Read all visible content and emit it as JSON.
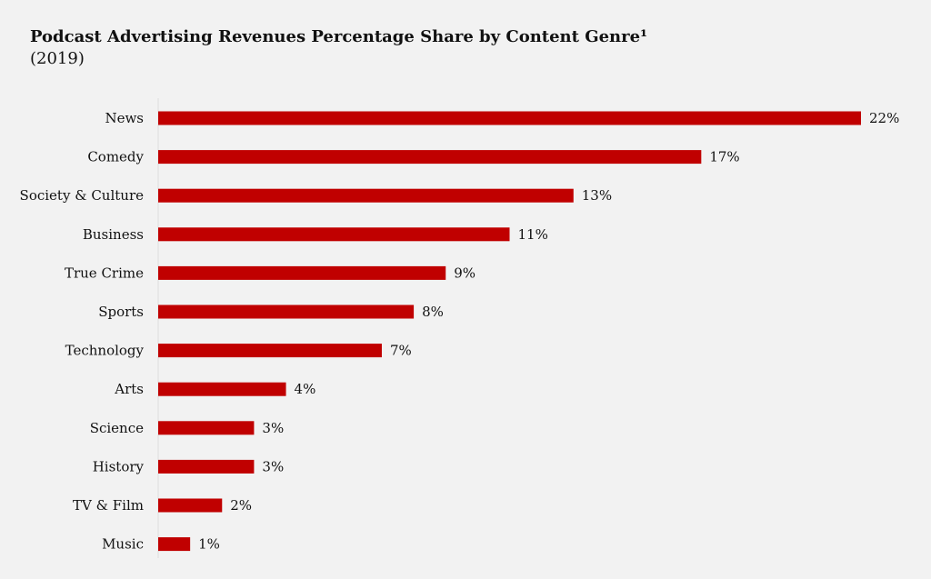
{
  "chart_data": {
    "type": "bar",
    "orientation": "horizontal",
    "title": "Podcast Advertising Revenues Percentage Share by Content Genre¹",
    "subtitle": "(2019)",
    "categories": [
      "News",
      "Comedy",
      "Society & Culture",
      "Business",
      "True Crime",
      "Sports",
      "Technology",
      "Arts",
      "Science",
      "History",
      "TV & Film",
      "Music"
    ],
    "values": [
      22,
      17,
      13,
      11,
      9,
      8,
      7,
      4,
      3,
      3,
      2,
      1
    ],
    "value_labels": [
      "22%",
      "17%",
      "13%",
      "11%",
      "9%",
      "8%",
      "7%",
      "4%",
      "3%",
      "3%",
      "2%",
      "1%"
    ],
    "xlim": [
      0,
      22
    ],
    "xlabel": "",
    "ylabel": "",
    "grid": false,
    "legend": "none",
    "bar_color": "#c00000"
  }
}
